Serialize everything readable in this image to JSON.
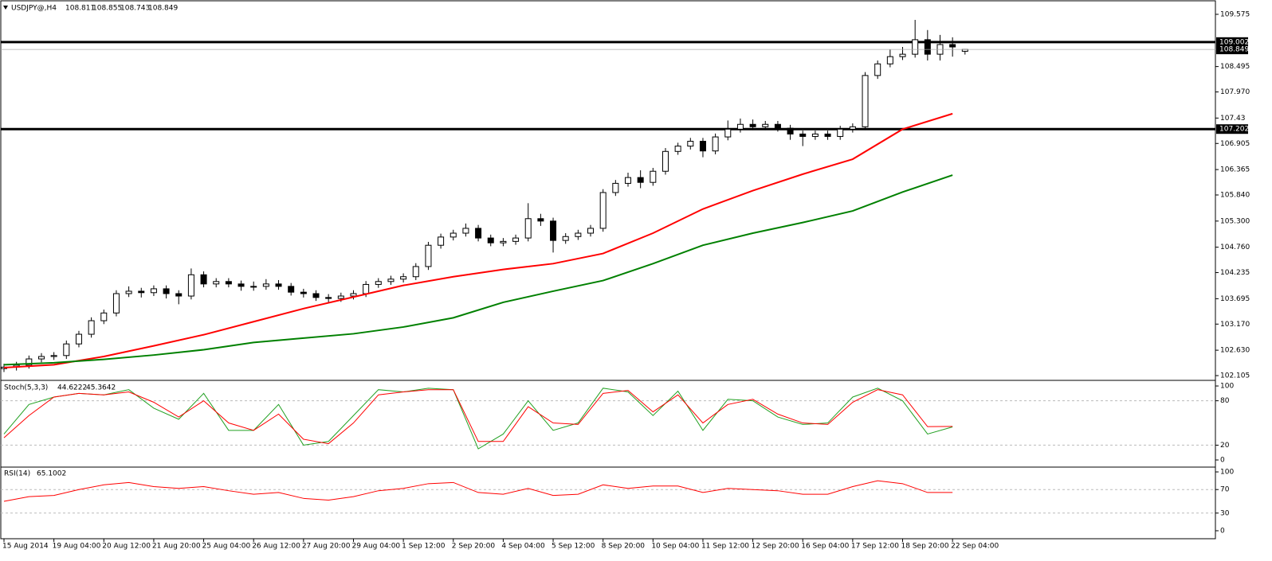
{
  "chart_data": [
    {
      "type": "candlestick",
      "symbol": "USDJPY@,H4",
      "open": [
        102.25,
        102.28,
        102.32,
        102.45,
        102.5,
        102.52,
        102.76,
        102.96,
        103.24,
        103.4,
        103.8,
        103.85,
        103.82,
        103.9,
        103.8,
        103.75,
        104.19,
        104.0,
        104.05,
        104.0,
        103.95,
        103.95,
        104.0,
        103.95,
        103.83,
        103.8,
        103.72,
        103.7,
        103.75,
        103.8,
        103.99,
        104.05,
        104.1,
        104.15,
        104.36,
        104.8,
        104.97,
        105.05,
        105.15,
        104.95,
        104.85,
        104.88,
        104.95,
        105.35,
        105.3,
        104.9,
        104.98,
        105.05,
        105.15,
        105.89,
        106.08,
        106.2,
        106.1,
        106.33,
        106.74,
        106.85,
        106.95,
        106.75,
        107.04,
        107.2,
        107.3,
        107.25,
        107.3,
        107.22,
        107.1,
        107.05,
        107.1,
        107.05,
        107.2,
        107.25,
        108.31,
        108.55,
        108.7,
        108.75,
        109.05,
        108.75,
        108.95,
        108.811
      ],
      "high": [
        102.35,
        102.39,
        102.52,
        102.57,
        102.59,
        102.83,
        103.03,
        103.31,
        103.47,
        103.87,
        103.95,
        103.92,
        103.97,
        103.97,
        103.87,
        104.32,
        104.26,
        104.12,
        104.12,
        104.07,
        104.05,
        104.1,
        104.08,
        104.02,
        103.9,
        103.87,
        103.79,
        103.82,
        103.87,
        104.06,
        104.12,
        104.17,
        104.22,
        104.43,
        104.87,
        105.04,
        105.12,
        105.25,
        105.22,
        105.02,
        104.95,
        105.02,
        105.67,
        105.45,
        105.37,
        105.05,
        105.12,
        105.22,
        105.96,
        106.15,
        106.3,
        106.35,
        106.4,
        106.81,
        106.92,
        107.02,
        107.02,
        107.11,
        107.38,
        107.42,
        107.4,
        107.37,
        107.37,
        107.29,
        107.17,
        107.17,
        107.17,
        107.27,
        107.32,
        108.38,
        108.62,
        108.85,
        108.9,
        109.46,
        109.25,
        109.15,
        109.1,
        108.855
      ],
      "low": [
        102.18,
        102.21,
        102.25,
        102.38,
        102.43,
        102.45,
        102.69,
        102.89,
        103.17,
        103.33,
        103.73,
        103.72,
        103.75,
        103.7,
        103.58,
        103.68,
        103.93,
        103.93,
        103.93,
        103.86,
        103.86,
        103.88,
        103.88,
        103.76,
        103.72,
        103.65,
        103.62,
        103.63,
        103.68,
        103.73,
        103.92,
        103.98,
        104.03,
        104.08,
        104.29,
        104.73,
        104.9,
        104.98,
        104.88,
        104.78,
        104.78,
        104.81,
        104.88,
        105.2,
        104.65,
        104.83,
        104.91,
        104.98,
        105.08,
        105.82,
        106.01,
        105.98,
        106.03,
        106.26,
        106.67,
        106.78,
        106.62,
        106.68,
        106.97,
        107.13,
        107.18,
        107.18,
        107.15,
        106.98,
        106.85,
        106.98,
        106.98,
        106.98,
        107.13,
        107.18,
        108.24,
        108.48,
        108.63,
        108.68,
        108.62,
        108.62,
        108.7,
        108.743
      ],
      "close": [
        102.28,
        102.32,
        102.45,
        102.5,
        102.52,
        102.76,
        102.96,
        103.24,
        103.4,
        103.8,
        103.85,
        103.82,
        103.9,
        103.8,
        103.75,
        104.19,
        104.0,
        104.05,
        104.0,
        103.95,
        103.95,
        104.0,
        103.95,
        103.83,
        103.8,
        103.72,
        103.7,
        103.75,
        103.8,
        103.99,
        104.05,
        104.1,
        104.15,
        104.36,
        104.8,
        104.97,
        105.05,
        105.15,
        104.95,
        104.85,
        104.88,
        104.95,
        105.35,
        105.3,
        104.9,
        104.98,
        105.05,
        105.15,
        105.89,
        106.08,
        106.2,
        106.1,
        106.33,
        106.74,
        106.85,
        106.95,
        106.75,
        107.04,
        107.2,
        107.3,
        107.25,
        107.3,
        107.22,
        107.1,
        107.05,
        107.1,
        107.05,
        107.2,
        107.25,
        108.31,
        108.55,
        108.7,
        108.75,
        109.05,
        108.75,
        108.95,
        108.9,
        108.849
      ],
      "series": [
        {
          "color": "#ff0000",
          "values": [
            102.27,
            102.33,
            102.5,
            102.72,
            102.95,
            103.22,
            103.49,
            103.73,
            103.97,
            104.15,
            104.3,
            104.42,
            104.63,
            105.05,
            105.55,
            105.93,
            106.27,
            106.58,
            107.2,
            107.52
          ]
        },
        {
          "color": "#008000",
          "values": [
            102.33,
            102.37,
            102.44,
            102.53,
            102.64,
            102.79,
            102.88,
            102.97,
            103.11,
            103.3,
            103.62,
            103.85,
            104.07,
            104.42,
            104.8,
            105.05,
            105.27,
            105.51,
            105.9,
            106.25
          ]
        }
      ],
      "levels": [
        109.002,
        107.202
      ],
      "ylim": [
        102.023,
        109.838
      ],
      "yticks": [
        109.575,
        108.495,
        {
          "value": 107.97,
          "label": "107.970"
        },
        107.43,
        106.905,
        106.365,
        {
          "value": 105.84,
          "label": "105.840"
        },
        {
          "value": 105.3,
          "label": "105.300"
        },
        {
          "value": 104.76,
          "label": "104.760"
        },
        104.235,
        103.695,
        {
          "value": 103.17,
          "label": "103.170"
        },
        {
          "value": 102.63,
          "label": "102.630"
        },
        102.105
      ],
      "time_labels": [
        "15 Aug 2014",
        "19 Aug 04:00",
        "20 Aug 12:00",
        "21 Aug 20:00",
        "25 Aug 04:00",
        "26 Aug 12:00",
        "27 Aug 20:00",
        "29 Aug 04:00",
        "1 Sep 12:00",
        "2 Sep 20:00",
        "4 Sep 04:00",
        "5 Sep 12:00",
        "8 Sep 20:00",
        "10 Sep 04:00",
        "11 Sep 12:00",
        "12 Sep 20:00",
        "16 Sep 04:00",
        "17 Sep 12:00",
        "18 Sep 20:00",
        "22 Sep 04:00"
      ]
    },
    {
      "type": "line",
      "title": "Stoch(5,3,3)",
      "series": [
        {
          "color": "#22a022",
          "values": [
            35,
            75,
            85,
            90,
            88,
            95,
            70,
            55,
            90,
            40,
            40,
            75,
            20,
            25,
            60,
            95,
            92,
            97,
            95,
            15,
            35,
            80,
            40,
            50,
            97,
            92,
            60,
            93,
            40,
            82,
            80,
            58,
            48,
            50,
            85,
            97,
            80,
            35,
            44.6222
          ]
        },
        {
          "color": "#ff0000",
          "values": [
            30,
            60,
            85,
            90,
            88,
            92,
            78,
            58,
            80,
            50,
            40,
            62,
            28,
            22,
            50,
            88,
            92,
            95,
            95,
            25,
            25,
            72,
            50,
            48,
            90,
            94,
            65,
            88,
            50,
            75,
            82,
            62,
            50,
            48,
            78,
            95,
            88,
            45,
            45.3642
          ]
        }
      ],
      "levels": [
        80,
        20
      ],
      "ylim": [
        -7.5,
        106.5
      ],
      "yticks": [
        100,
        80,
        20,
        0
      ]
    },
    {
      "type": "line",
      "title": "RSI(14)",
      "series": [
        {
          "color": "#ff0000",
          "values": [
            50,
            58,
            60,
            70,
            78,
            82,
            75,
            72,
            75,
            68,
            62,
            65,
            55,
            52,
            58,
            68,
            72,
            80,
            82,
            65,
            62,
            72,
            60,
            62,
            78,
            72,
            76,
            76,
            65,
            72,
            70,
            68,
            62,
            62,
            75,
            85,
            80,
            65,
            65.1002
          ]
        }
      ],
      "levels": [
        70,
        30
      ],
      "ylim": [
        -9.5,
        106.8
      ],
      "yticks": [
        100,
        70,
        30,
        0
      ]
    }
  ]
}
